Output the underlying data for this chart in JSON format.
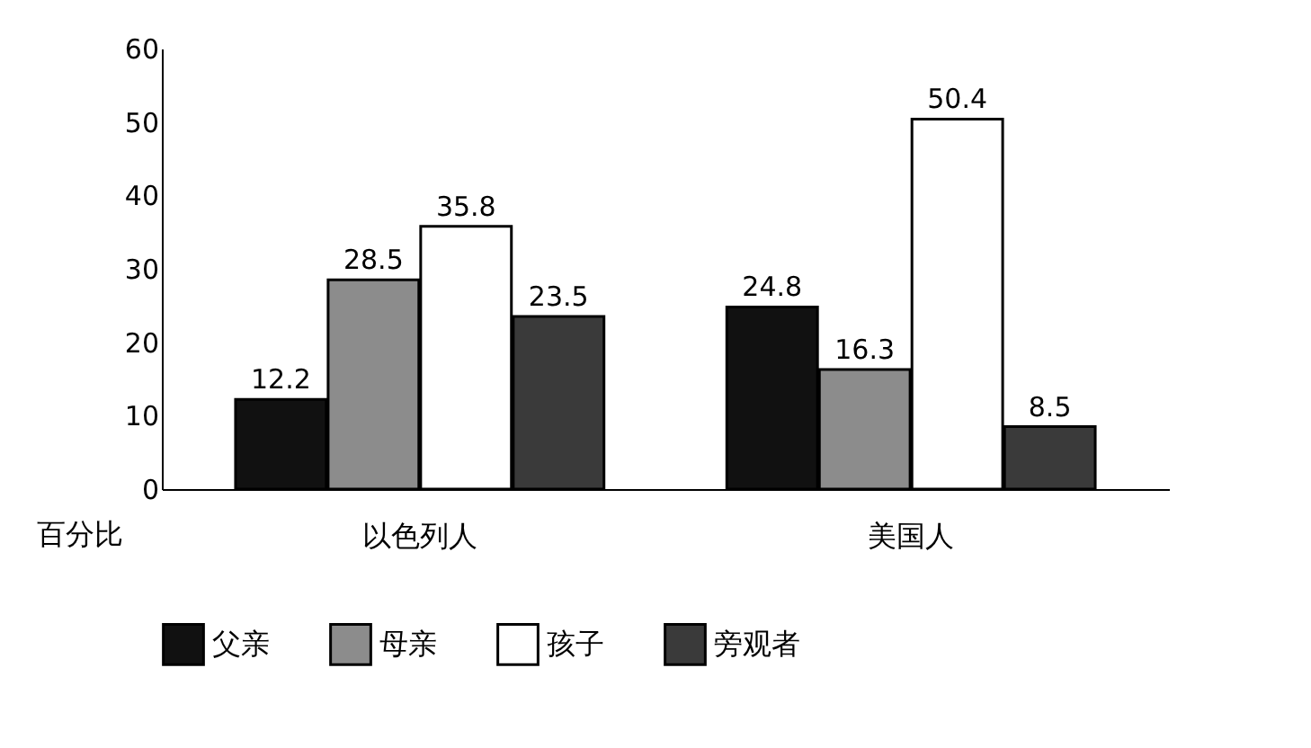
{
  "chart_data": {
    "type": "bar",
    "ylabel": "百分比",
    "categories": [
      "以色列人",
      "美国人"
    ],
    "series": [
      {
        "name": "父亲",
        "color": "#111111",
        "values": [
          12.2,
          24.8
        ]
      },
      {
        "name": "母亲",
        "color": "#8c8c8c",
        "values": [
          28.5,
          16.3
        ]
      },
      {
        "name": "孩子",
        "color": "#ffffff",
        "values": [
          35.8,
          50.4
        ]
      },
      {
        "name": "旁观者",
        "color": "#3a3a3a",
        "values": [
          23.5,
          8.5
        ]
      }
    ],
    "ylim": [
      0,
      60
    ],
    "yticks": [
      0,
      10,
      20,
      30,
      40,
      50,
      60
    ],
    "grid": false,
    "legend": "bottom",
    "data_labels": true
  }
}
